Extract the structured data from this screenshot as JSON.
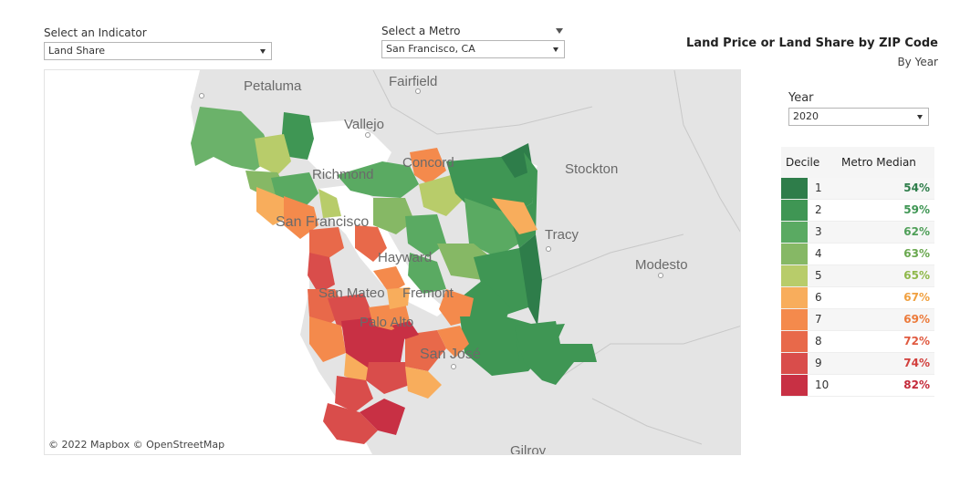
{
  "indicator": {
    "label": "Select an Indicator",
    "value": "Land Share"
  },
  "metro": {
    "label": "Select a Metro",
    "value": "San Francisco, CA"
  },
  "title": "Land Price or Land Share by ZIP Code",
  "subtitle": "By Year",
  "year": {
    "label": "Year",
    "value": "2020"
  },
  "legend": {
    "col_decile": "Decile",
    "col_median": "Metro Median",
    "rows": [
      {
        "decile": "1",
        "median": "54%",
        "color": "#2e7d4a",
        "text_color": "#2e7d4a"
      },
      {
        "decile": "2",
        "median": "59%",
        "color": "#3f9654",
        "text_color": "#3f9654"
      },
      {
        "decile": "3",
        "median": "62%",
        "color": "#5aaa62",
        "text_color": "#4f9f58"
      },
      {
        "decile": "4",
        "median": "63%",
        "color": "#86b865",
        "text_color": "#6aa84f"
      },
      {
        "decile": "5",
        "median": "65%",
        "color": "#b8cc6a",
        "text_color": "#8fb84a"
      },
      {
        "decile": "6",
        "median": "67%",
        "color": "#f8ad5c",
        "text_color": "#f0a040"
      },
      {
        "decile": "7",
        "median": "69%",
        "color": "#f48a4c",
        "text_color": "#ec7a3a"
      },
      {
        "decile": "8",
        "median": "72%",
        "color": "#e8694a",
        "text_color": "#e05a40"
      },
      {
        "decile": "9",
        "median": "74%",
        "color": "#d94d4b",
        "text_color": "#d23f3c"
      },
      {
        "decile": "10",
        "median": "82%",
        "color": "#c83044",
        "text_color": "#c42a3a"
      }
    ]
  },
  "map": {
    "attribution": "© 2022 Mapbox  © OpenStreetMap",
    "place_labels": [
      "Petaluma",
      "Fairfield",
      "Vallejo",
      "Richmond",
      "Concord",
      "Stockton",
      "San Francisco",
      "Tracy",
      "Hayward",
      "Modesto",
      "San Mateo",
      "Fremont",
      "Palo Alto",
      "San José",
      "Gilroy"
    ]
  }
}
